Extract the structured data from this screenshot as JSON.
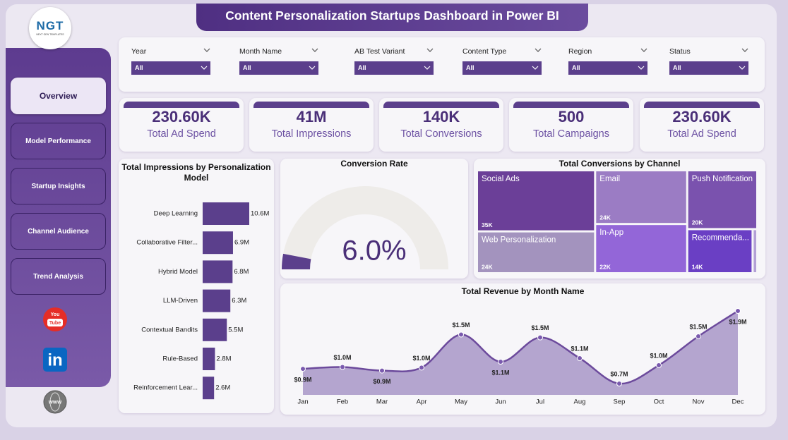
{
  "header": {
    "title": "Content Personalization Startups Dashboard in Power BI"
  },
  "logo": {
    "text": "NGT",
    "subtitle": "NEXT GEN TEMPLATES"
  },
  "nav": {
    "items": [
      "Overview",
      "Model Performance",
      "Startup Insights",
      "Channel Audience",
      "Trend Analysis"
    ]
  },
  "social": {
    "youtube": [
      "You",
      "Tube"
    ],
    "linkedin": "in",
    "web": "WWW"
  },
  "filters": [
    {
      "label": "Year",
      "value": "All"
    },
    {
      "label": "Month Name",
      "value": "All"
    },
    {
      "label": "AB Test Variant",
      "value": "All"
    },
    {
      "label": "Content Type",
      "value": "All"
    },
    {
      "label": "Region",
      "value": "All"
    },
    {
      "label": "Status",
      "value": "All"
    }
  ],
  "kpis": [
    {
      "value": "230.60K",
      "label": "Total Ad Spend"
    },
    {
      "value": "41M",
      "label": "Total Impressions"
    },
    {
      "value": "140K",
      "label": "Total Conversions"
    },
    {
      "value": "500",
      "label": "Total Campaigns"
    },
    {
      "value": "230.60K",
      "label": "Total Ad Spend"
    }
  ],
  "chart_data": [
    {
      "type": "bar",
      "orientation": "horizontal",
      "title": "Total Impressions by Personalization Model",
      "categories": [
        "Deep Learning",
        "Collaborative Filter...",
        "Hybrid Model",
        "LLM-Driven",
        "Contextual Bandits",
        "Rule-Based",
        "Reinforcement Lear..."
      ],
      "values": [
        10600000,
        6900000,
        6800000,
        6300000,
        5500000,
        2800000,
        2600000
      ],
      "value_labels": [
        "10.6M",
        "6.9M",
        "6.8M",
        "6.3M",
        "5.5M",
        "2.8M",
        "2.6M"
      ],
      "color": "#5b3f8c"
    },
    {
      "type": "gauge",
      "title": "Conversion Rate",
      "value": 6.0,
      "value_label": "6.0%",
      "ylim": [
        0,
        100
      ],
      "color": "#5b3f8c",
      "track_color": "#eeece9"
    },
    {
      "type": "treemap",
      "title": "Total Conversions by Channel",
      "categories": [
        "Social Ads",
        "Email",
        "Push Notification",
        "Web Personalization",
        "In-App",
        "Recommenda...",
        null
      ],
      "values": [
        35000,
        24000,
        20000,
        24000,
        22000,
        14000,
        1000
      ],
      "value_labels": [
        "35K",
        "24K",
        "20K",
        "24K",
        "22K",
        "14K",
        null
      ],
      "colors": [
        "#6b3f98",
        "#9b7cc4",
        "#7a52ae",
        "#a393be",
        "#9366d8",
        "#6a3fc4",
        "#b3a0d6"
      ]
    },
    {
      "type": "area",
      "title": "Total Revenue by Month Name",
      "categories": [
        "Jan",
        "Feb",
        "Mar",
        "Apr",
        "May",
        "Jun",
        "Jul",
        "Aug",
        "Sep",
        "Oct",
        "Nov",
        "Dec"
      ],
      "values": [
        940000,
        970000,
        910000,
        960000,
        1520000,
        1060000,
        1470000,
        1120000,
        690000,
        1000000,
        1490000,
        1920000
      ],
      "value_labels": [
        "$0.9M",
        "$1.0M",
        "$0.9M",
        "$1.0M",
        "$1.5M",
        "$1.1M",
        "$1.5M",
        "$1.1M",
        "$0.7M",
        "$1.0M",
        "$1.5M",
        "$1.9M"
      ],
      "color": "#6c4a9c",
      "fill": "#b4a5cf"
    }
  ]
}
